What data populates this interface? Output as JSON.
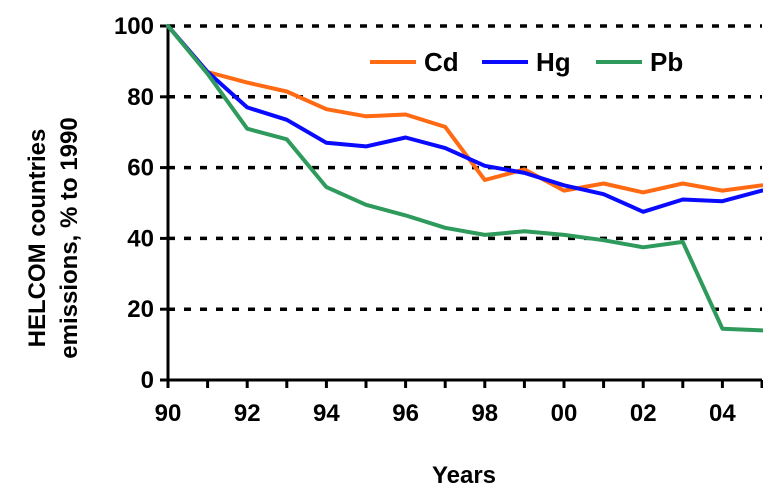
{
  "chart_data": {
    "type": "line",
    "title": "",
    "xlabel": "Years",
    "ylabel_lines": [
      "HELCOM countries",
      "emissions, % to 1990"
    ],
    "x_ticks": [
      "90",
      "92",
      "94",
      "96",
      "98",
      "00",
      "02",
      "04"
    ],
    "x_values": [
      1990,
      1991,
      1992,
      1993,
      1994,
      1995,
      1996,
      1997,
      1998,
      1999,
      2000,
      2001,
      2002,
      2003,
      2004,
      2005
    ],
    "xlim": [
      1990,
      2005
    ],
    "ylim": [
      0,
      100
    ],
    "y_ticks": [
      0,
      20,
      40,
      60,
      80,
      100
    ],
    "grid": "horizontal-dotted",
    "legend_position": "top-right",
    "series": [
      {
        "name": "Cd",
        "color": "#FF6A13",
        "values": [
          100,
          87,
          84,
          81.5,
          76.5,
          74.5,
          75,
          71.5,
          56.5,
          59.5,
          53.5,
          55.5,
          53,
          55.5,
          53.5,
          55
        ]
      },
      {
        "name": "Hg",
        "color": "#0A0AFF",
        "values": [
          100,
          87,
          77,
          73.5,
          67,
          66,
          68.5,
          65.5,
          60.5,
          58.5,
          55,
          52.5,
          47.5,
          51,
          50.5,
          53.5
        ]
      },
      {
        "name": "Pb",
        "color": "#2E9A5C",
        "values": [
          100,
          86.5,
          71,
          68,
          54.5,
          49.5,
          46.5,
          43,
          41,
          42,
          41,
          39.5,
          37.5,
          39,
          14.5,
          14
        ]
      }
    ]
  }
}
